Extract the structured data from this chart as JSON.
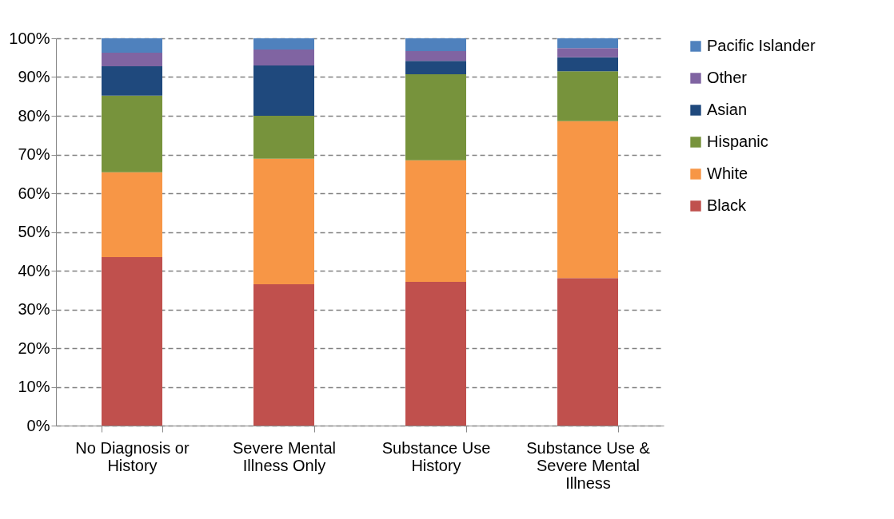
{
  "chart_data": {
    "type": "bar",
    "stacked": true,
    "categories": [
      "No Diagnosis or History",
      "Severe Mental Illness Only",
      "Substance Use History",
      "Substance Use & Severe Mental Illness"
    ],
    "series": [
      {
        "name": "Black",
        "color": "#c0504d",
        "values": [
          43.5,
          36.5,
          37.1,
          38.1
        ]
      },
      {
        "name": "White",
        "color": "#f79646",
        "values": [
          21.9,
          32.4,
          31.4,
          40.5
        ]
      },
      {
        "name": "Hispanic",
        "color": "#77933c",
        "values": [
          19.8,
          11.1,
          22.2,
          12.9
        ]
      },
      {
        "name": "Asian",
        "color": "#1f497d",
        "values": [
          7.6,
          13.0,
          3.5,
          3.6
        ]
      },
      {
        "name": "Other",
        "color": "#8064a2",
        "values": [
          3.5,
          4.1,
          2.5,
          2.4
        ]
      },
      {
        "name": "Pacific Islander",
        "color": "#4f81bd",
        "values": [
          3.7,
          2.9,
          3.3,
          2.5
        ]
      }
    ],
    "ylim": [
      0,
      100
    ],
    "yticks": [
      {
        "value": 0,
        "label": "0%"
      },
      {
        "value": 10,
        "label": "10%"
      },
      {
        "value": 20,
        "label": "20%"
      },
      {
        "value": 30,
        "label": "30%"
      },
      {
        "value": 40,
        "label": "40%"
      },
      {
        "value": 50,
        "label": "50%"
      },
      {
        "value": 60,
        "label": "60%"
      },
      {
        "value": 70,
        "label": "70%"
      },
      {
        "value": 80,
        "label": "80%"
      },
      {
        "value": 90,
        "label": "90%"
      },
      {
        "value": 100,
        "label": "100%"
      }
    ],
    "grid": "y",
    "legend": "right"
  }
}
